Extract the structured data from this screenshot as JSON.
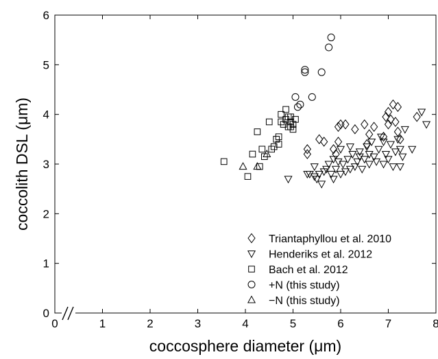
{
  "chart_data": {
    "type": "scatter",
    "xlabel": "coccosphere diameter (μm)",
    "ylabel": "coccolith DSL (μm)",
    "xlim": [
      0,
      8
    ],
    "ylim": [
      0,
      6
    ],
    "x_ticks": [
      "0",
      "1",
      "2",
      "3",
      "4",
      "5",
      "6",
      "7",
      "8"
    ],
    "y_ticks": [
      "0",
      "1",
      "2",
      "3",
      "4",
      "5",
      "6"
    ],
    "x_axis_break": true,
    "grid": false,
    "legend_position": "bottom-right",
    "series": [
      {
        "name": "Triantaphyllou et al. 2010",
        "marker": "diamond",
        "points": [
          [
            5.3,
            3.3
          ],
          [
            5.55,
            3.5
          ],
          [
            5.65,
            3.45
          ],
          [
            5.85,
            3.3
          ],
          [
            5.9,
            3.2
          ],
          [
            5.95,
            3.45
          ],
          [
            5.95,
            3.75
          ],
          [
            6.0,
            3.8
          ],
          [
            6.1,
            3.8
          ],
          [
            6.3,
            3.7
          ],
          [
            6.5,
            3.8
          ],
          [
            6.6,
            3.6
          ],
          [
            6.7,
            3.75
          ],
          [
            6.9,
            3.55
          ],
          [
            6.95,
            3.95
          ],
          [
            7.0,
            3.8
          ],
          [
            7.0,
            4.05
          ],
          [
            7.05,
            3.9
          ],
          [
            7.1,
            4.2
          ],
          [
            7.15,
            3.85
          ],
          [
            7.2,
            4.15
          ],
          [
            7.2,
            3.65
          ],
          [
            7.25,
            3.5
          ],
          [
            7.6,
            3.95
          ],
          [
            5.3,
            3.2
          ],
          [
            6.55,
            3.4
          ]
        ]
      },
      {
        "name": "Henderiks et al. 2012",
        "marker": "triangle-down",
        "points": [
          [
            4.9,
            2.7
          ],
          [
            5.3,
            2.8
          ],
          [
            5.35,
            2.8
          ],
          [
            5.45,
            2.95
          ],
          [
            5.45,
            2.75
          ],
          [
            5.5,
            2.7
          ],
          [
            5.55,
            2.8
          ],
          [
            5.6,
            2.6
          ],
          [
            5.65,
            2.85
          ],
          [
            5.7,
            2.9
          ],
          [
            5.75,
            3.0
          ],
          [
            5.8,
            2.8
          ],
          [
            5.85,
            3.1
          ],
          [
            5.85,
            2.7
          ],
          [
            5.9,
            2.9
          ],
          [
            5.95,
            3.05
          ],
          [
            6.0,
            2.8
          ],
          [
            6.0,
            3.3
          ],
          [
            6.05,
            3.0
          ],
          [
            6.1,
            2.85
          ],
          [
            6.15,
            3.1
          ],
          [
            6.2,
            2.9
          ],
          [
            6.25,
            3.2
          ],
          [
            6.3,
            2.95
          ],
          [
            6.35,
            3.05
          ],
          [
            6.4,
            3.25
          ],
          [
            6.45,
            2.9
          ],
          [
            6.5,
            3.1
          ],
          [
            6.55,
            3.35
          ],
          [
            6.6,
            3.0
          ],
          [
            6.6,
            3.2
          ],
          [
            6.65,
            3.45
          ],
          [
            6.7,
            3.15
          ],
          [
            6.75,
            3.05
          ],
          [
            6.8,
            3.3
          ],
          [
            6.85,
            3.55
          ],
          [
            6.9,
            3.0
          ],
          [
            6.95,
            3.2
          ],
          [
            7.0,
            3.1
          ],
          [
            7.05,
            3.4
          ],
          [
            7.1,
            2.95
          ],
          [
            7.15,
            3.25
          ],
          [
            7.2,
            3.5
          ],
          [
            7.25,
            3.3
          ],
          [
            7.3,
            3.15
          ],
          [
            7.35,
            3.7
          ],
          [
            7.5,
            3.3
          ],
          [
            7.7,
            4.05
          ],
          [
            7.8,
            3.8
          ],
          [
            6.2,
            3.35
          ],
          [
            6.4,
            3.15
          ],
          [
            6.9,
            3.45
          ],
          [
            7.25,
            2.95
          ]
        ]
      },
      {
        "name": "Bach et al. 2012",
        "marker": "square",
        "points": [
          [
            3.55,
            3.05
          ],
          [
            4.05,
            2.75
          ],
          [
            4.15,
            3.2
          ],
          [
            4.25,
            3.65
          ],
          [
            4.3,
            2.95
          ],
          [
            4.35,
            3.3
          ],
          [
            4.4,
            3.15
          ],
          [
            4.5,
            3.85
          ],
          [
            4.55,
            3.3
          ],
          [
            4.6,
            3.35
          ],
          [
            4.65,
            3.5
          ],
          [
            4.7,
            3.4
          ],
          [
            4.7,
            3.55
          ],
          [
            4.75,
            3.85
          ],
          [
            4.75,
            4.0
          ],
          [
            4.8,
            3.8
          ],
          [
            4.85,
            3.9
          ],
          [
            4.85,
            4.1
          ],
          [
            4.9,
            3.75
          ],
          [
            4.95,
            3.85
          ],
          [
            4.95,
            3.95
          ],
          [
            5.0,
            3.8
          ],
          [
            5.0,
            3.7
          ],
          [
            5.05,
            3.9
          ],
          [
            4.95,
            3.75
          ],
          [
            4.9,
            3.95
          ]
        ]
      },
      {
        "name": "+N (this study)",
        "marker": "circle",
        "points": [
          [
            5.05,
            4.35
          ],
          [
            5.1,
            4.15
          ],
          [
            5.15,
            4.2
          ],
          [
            5.25,
            4.85
          ],
          [
            5.25,
            4.9
          ],
          [
            5.4,
            4.35
          ],
          [
            5.6,
            4.85
          ],
          [
            5.75,
            5.35
          ],
          [
            5.8,
            5.55
          ]
        ]
      },
      {
        "name": "−N (this study)",
        "marker": "triangle-up",
        "points": [
          [
            3.95,
            2.95
          ],
          [
            4.25,
            2.95
          ],
          [
            4.45,
            3.2
          ]
        ]
      }
    ]
  }
}
